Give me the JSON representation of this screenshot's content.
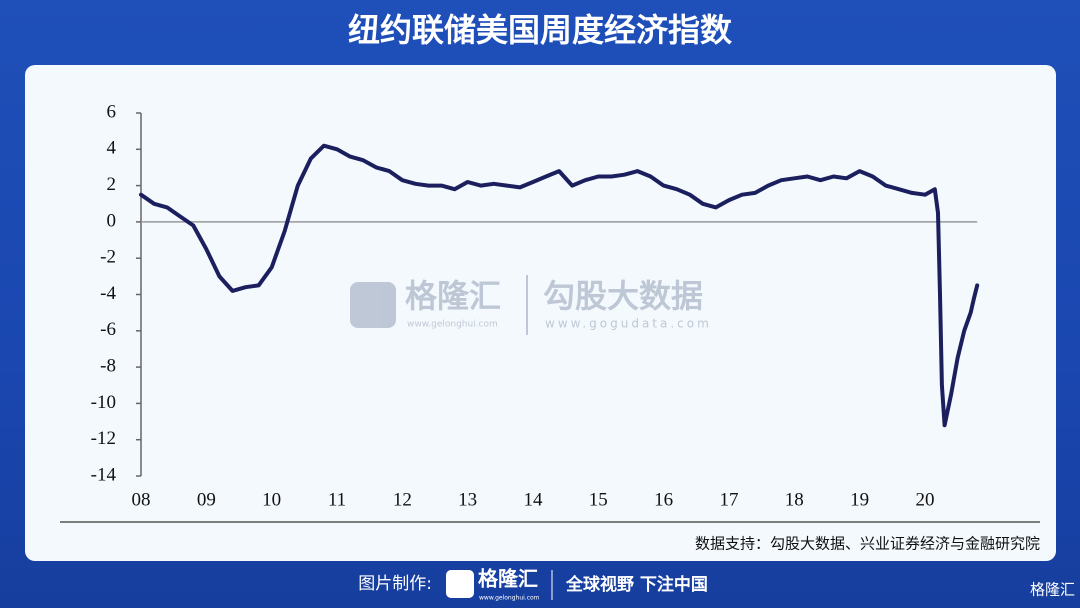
{
  "chart_data": {
    "type": "line",
    "title": "纽约联储美国周度经济指数",
    "x": [
      8.0,
      8.2,
      8.4,
      8.6,
      8.8,
      9.0,
      9.2,
      9.4,
      9.6,
      9.8,
      10.0,
      10.2,
      10.4,
      10.6,
      10.8,
      11.0,
      11.2,
      11.4,
      11.6,
      11.8,
      12.0,
      12.2,
      12.4,
      12.6,
      12.8,
      13.0,
      13.2,
      13.4,
      13.6,
      13.8,
      14.0,
      14.2,
      14.4,
      14.6,
      14.8,
      15.0,
      15.2,
      15.4,
      15.6,
      15.8,
      16.0,
      16.2,
      16.4,
      16.6,
      16.8,
      17.0,
      17.2,
      17.4,
      17.6,
      17.8,
      18.0,
      18.2,
      18.4,
      18.6,
      18.8,
      19.0,
      19.2,
      19.4,
      19.6,
      19.8,
      20.0,
      20.15,
      20.2,
      20.23,
      20.26,
      20.3,
      20.4,
      20.5,
      20.6,
      20.7,
      20.75,
      20.8
    ],
    "values": [
      1.5,
      1.0,
      0.8,
      0.3,
      -0.2,
      -1.5,
      -3.0,
      -3.8,
      -3.6,
      -3.5,
      -2.5,
      -0.5,
      2.0,
      3.5,
      4.2,
      4.0,
      3.6,
      3.4,
      3.0,
      2.8,
      2.3,
      2.1,
      2.0,
      2.0,
      1.8,
      2.2,
      2.0,
      2.1,
      2.0,
      1.9,
      2.2,
      2.5,
      2.8,
      2.0,
      2.3,
      2.5,
      2.5,
      2.6,
      2.8,
      2.5,
      2.0,
      1.8,
      1.5,
      1.0,
      0.8,
      1.2,
      1.5,
      1.6,
      2.0,
      2.3,
      2.4,
      2.5,
      2.3,
      2.5,
      2.4,
      2.8,
      2.5,
      2.0,
      1.8,
      1.6,
      1.5,
      1.8,
      0.5,
      -4.0,
      -9.0,
      -11.2,
      -9.5,
      -7.5,
      -6.0,
      -5.0,
      -4.2,
      -3.5
    ],
    "color": "#1b1f5e",
    "xlim": [
      8,
      21
    ],
    "xticks": [
      {
        "value": 8,
        "label": "08"
      },
      {
        "value": 9,
        "label": "09"
      },
      10,
      11,
      12,
      13,
      14,
      15,
      16,
      17,
      18,
      19,
      20
    ],
    "ylim": [
      -14,
      6
    ],
    "yticks": [
      6,
      4,
      2,
      0,
      -2,
      -4,
      -6,
      -8,
      -10,
      -12,
      -14
    ],
    "source": "数据支持：勾股大数据、兴业证券经济与金融研究院"
  },
  "watermark": {
    "brand": "格隆汇",
    "brand_url": "www.gelonghui.com",
    "data_brand": "勾股大数据",
    "data_url": "www.gogudata.com"
  },
  "footer": {
    "made_by": "图片制作:",
    "logo": "格隆汇",
    "logo_url": "www.gelonghui.com",
    "slogan": "全球视野 下注中国",
    "corner_logo": "格隆汇"
  }
}
